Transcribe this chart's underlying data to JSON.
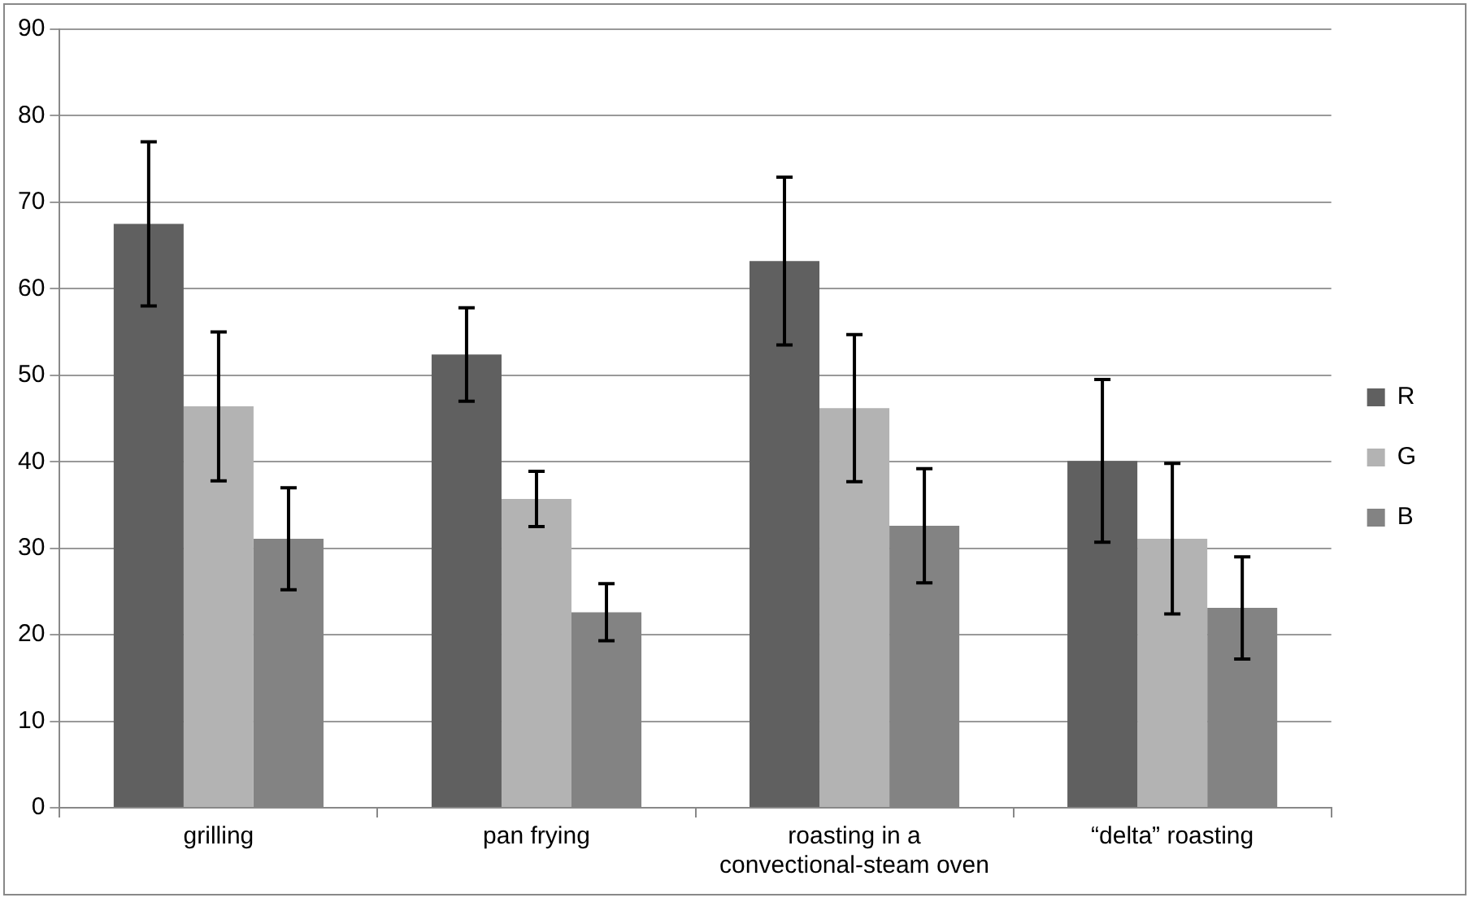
{
  "chart_data": {
    "type": "bar",
    "categories": [
      "grilling",
      "pan frying",
      "roasting in a convectional-steam oven",
      "“delta” roasting"
    ],
    "series": [
      {
        "name": "R",
        "color": "#606060",
        "values": [
          67.5,
          52.4,
          63.2,
          40.1
        ],
        "errors": [
          9.5,
          5.4,
          9.7,
          9.4
        ]
      },
      {
        "name": "G",
        "color": "#b3b3b3",
        "values": [
          46.4,
          35.7,
          46.2,
          31.1
        ],
        "errors": [
          8.6,
          3.2,
          8.5,
          8.7
        ]
      },
      {
        "name": "B",
        "color": "#838383",
        "values": [
          31.1,
          22.6,
          32.6,
          23.1
        ],
        "errors": [
          5.9,
          3.3,
          6.6,
          5.9
        ]
      }
    ],
    "ylim": [
      0,
      90
    ],
    "yticks": [
      0,
      10,
      20,
      30,
      40,
      50,
      60,
      70,
      80,
      90
    ],
    "grid": "y",
    "legend": "right"
  }
}
